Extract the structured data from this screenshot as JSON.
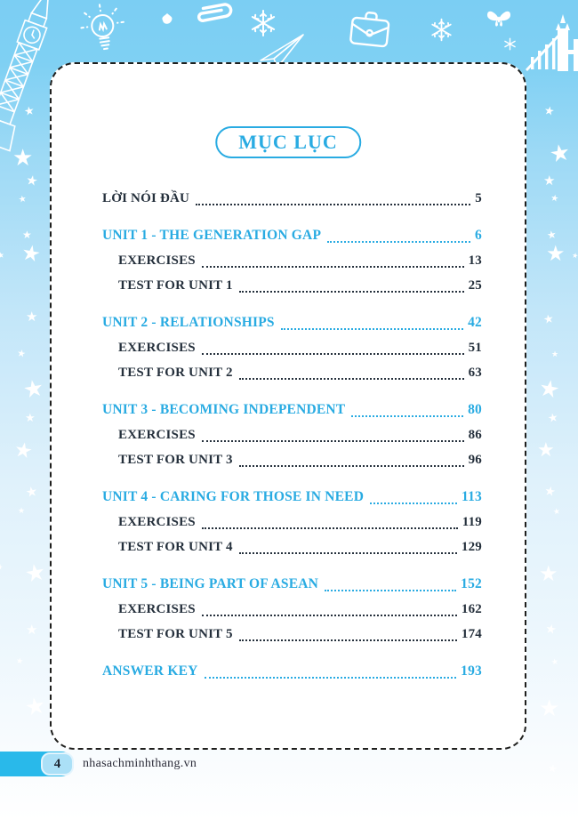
{
  "page": {
    "title": "MỤC LỤC",
    "page_number": "4",
    "website": "nhasachminhthang.vn",
    "star_glyph": "★"
  },
  "colors": {
    "accent": "#29abe2",
    "dark_text": "#25303c",
    "background_top": "#7bcef3",
    "footer_bar": "#29b9ea",
    "card_border": "#1f1f1d"
  },
  "decoration_icons": [
    "big-ben-icon",
    "lightbulb-icon",
    "leaf-icon",
    "paperclip-icon",
    "snowflake-icon",
    "paper-plane-icon",
    "briefcase-icon",
    "snowflake-icon",
    "butterfly-icon",
    "snowflake-small-icon",
    "tower-bridge-icon"
  ],
  "toc": {
    "entries": [
      {
        "label": "LỜI NÓI ĐẦU",
        "page": "5",
        "style": "dark",
        "indent": false,
        "group_start": true
      },
      {
        "label": "UNIT 1 - THE GENERATION GAP",
        "page": "6",
        "style": "accent",
        "indent": false,
        "group_start": true
      },
      {
        "label": "EXERCISES",
        "page": "13",
        "style": "dark",
        "indent": true,
        "group_start": false
      },
      {
        "label": "TEST FOR UNIT 1",
        "page": "25",
        "style": "dark",
        "indent": true,
        "group_start": false
      },
      {
        "label": "UNIT 2 - RELATIONSHIPS",
        "page": "42",
        "style": "accent",
        "indent": false,
        "group_start": true
      },
      {
        "label": "EXERCISES",
        "page": "51",
        "style": "dark",
        "indent": true,
        "group_start": false
      },
      {
        "label": "TEST FOR UNIT 2",
        "page": "63",
        "style": "dark",
        "indent": true,
        "group_start": false
      },
      {
        "label": "UNIT 3 - BECOMING INDEPENDENT",
        "page": "80",
        "style": "accent",
        "indent": false,
        "group_start": true
      },
      {
        "label": "EXERCISES",
        "page": "86",
        "style": "dark",
        "indent": true,
        "group_start": false
      },
      {
        "label": "TEST FOR UNIT 3",
        "page": "96",
        "style": "dark",
        "indent": true,
        "group_start": false
      },
      {
        "label": "UNIT 4 - CARING FOR THOSE IN NEED",
        "page": "113",
        "style": "accent",
        "indent": false,
        "group_start": true
      },
      {
        "label": "EXERCISES",
        "page": "119",
        "style": "dark",
        "indent": true,
        "group_start": false
      },
      {
        "label": "TEST FOR UNIT 4",
        "page": "129",
        "style": "dark",
        "indent": true,
        "group_start": false
      },
      {
        "label": "UNIT 5 - BEING PART OF ASEAN",
        "page": "152",
        "style": "accent",
        "indent": false,
        "group_start": true
      },
      {
        "label": "EXERCISES",
        "page": "162",
        "style": "dark",
        "indent": true,
        "group_start": false
      },
      {
        "label": "TEST FOR UNIT 5",
        "page": "174",
        "style": "dark",
        "indent": true,
        "group_start": false
      },
      {
        "label": "ANSWER KEY",
        "page": "193",
        "style": "accent",
        "indent": false,
        "group_start": true
      }
    ]
  }
}
